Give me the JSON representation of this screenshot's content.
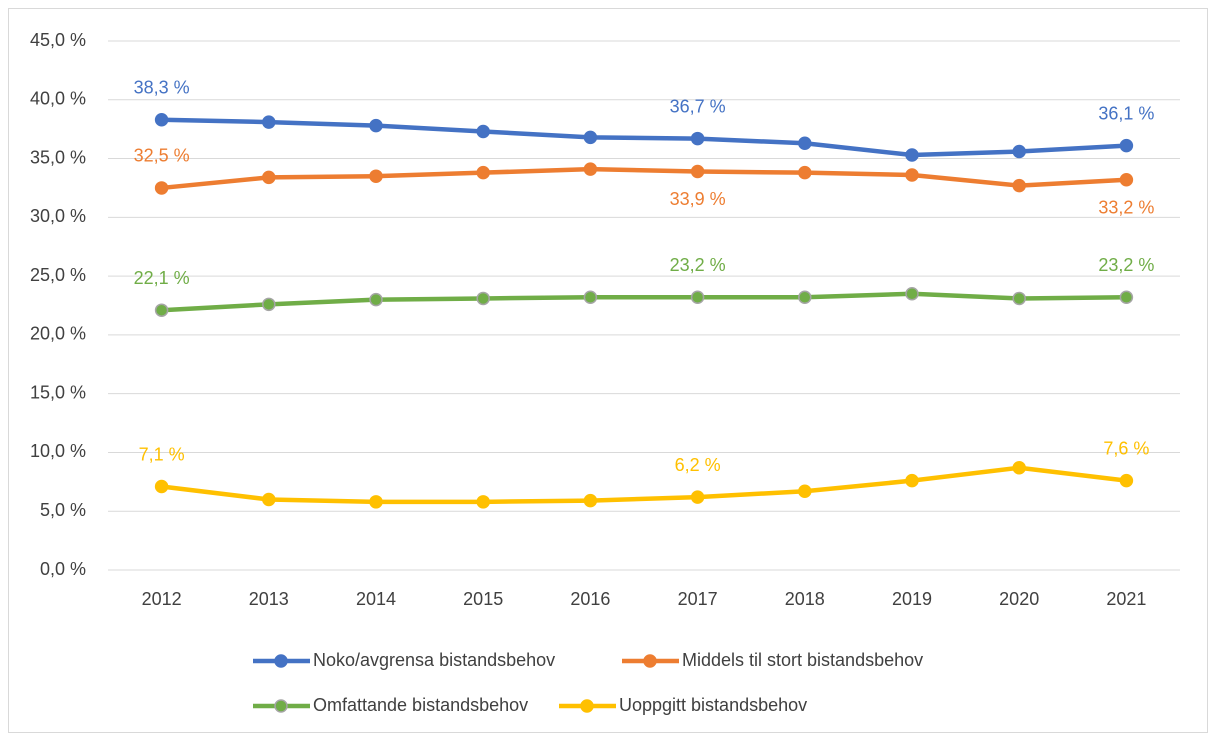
{
  "chart_data": {
    "type": "line",
    "categories": [
      "2012",
      "2013",
      "2014",
      "2015",
      "2016",
      "2017",
      "2018",
      "2019",
      "2020",
      "2021"
    ],
    "series": [
      {
        "name": "Noko/avgrensa bistandsbehov",
        "color": "#4472c4",
        "values": [
          38.3,
          38.1,
          37.8,
          37.3,
          36.8,
          36.7,
          36.3,
          35.3,
          35.6,
          36.1
        ],
        "value_labels": [
          "38,3 %",
          null,
          null,
          null,
          null,
          "36,7 %",
          null,
          null,
          null,
          "36,1 %"
        ]
      },
      {
        "name": "Middels til stort bistandsbehov",
        "color": "#ed7d31",
        "values": [
          32.5,
          33.4,
          33.5,
          33.8,
          34.1,
          33.9,
          33.8,
          33.6,
          32.7,
          33.2
        ],
        "value_labels": [
          "32,5 %",
          null,
          null,
          null,
          null,
          "33,9 %",
          null,
          null,
          null,
          "33,2 %"
        ]
      },
      {
        "name": "Omfattande bistandsbehov",
        "color": "#70ad47",
        "values": [
          22.1,
          22.6,
          23.0,
          23.1,
          23.2,
          23.2,
          23.2,
          23.5,
          23.1,
          23.2
        ],
        "value_labels": [
          "22,1 %",
          null,
          null,
          null,
          null,
          "23,2 %",
          null,
          null,
          null,
          "23,2 %"
        ]
      },
      {
        "name": "Uoppgitt bistandsbehov",
        "color": "#ffc000",
        "values": [
          7.1,
          6.0,
          5.8,
          5.8,
          5.9,
          6.2,
          6.7,
          7.6,
          8.7,
          7.6
        ],
        "value_labels": [
          "7,1 %",
          null,
          null,
          null,
          null,
          "6,2 %",
          null,
          null,
          null,
          "7,6 %"
        ]
      }
    ],
    "ylim": [
      0,
      45
    ],
    "yticks": [
      {
        "value": 0,
        "label": "0,0 %"
      },
      {
        "value": 5,
        "label": "5,0 %"
      },
      {
        "value": 10,
        "label": "10,0 %"
      },
      {
        "value": 15,
        "label": "15,0 %"
      },
      {
        "value": 20,
        "label": "20,0 %"
      },
      {
        "value": 25,
        "label": "25,0 %"
      },
      {
        "value": 30,
        "label": "30,0 %"
      },
      {
        "value": 35,
        "label": "35,0 %"
      },
      {
        "value": 40,
        "label": "40,0 %"
      },
      {
        "value": 45,
        "label": "45,0 %"
      }
    ],
    "grid": true
  }
}
